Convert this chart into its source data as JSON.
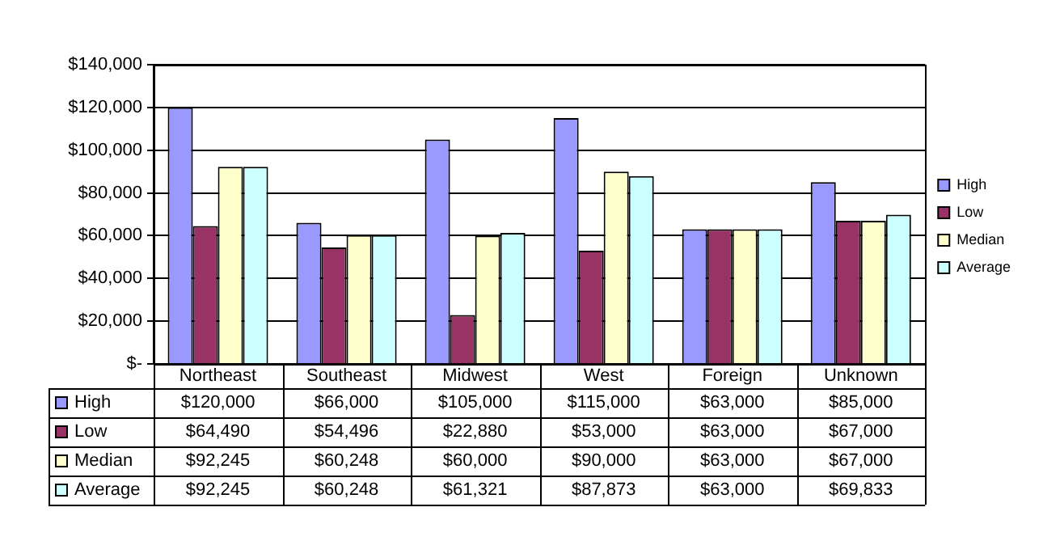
{
  "chart_data": {
    "type": "bar",
    "categories": [
      "Northeast",
      "Southeast",
      "Midwest",
      "West",
      "Foreign",
      "Unknown"
    ],
    "series": [
      {
        "name": "High",
        "color": "#9999ff",
        "values": [
          120000,
          66000,
          105000,
          115000,
          63000,
          85000
        ],
        "value_labels": [
          "$120,000",
          "$66,000",
          "$105,000",
          "$115,000",
          "$63,000",
          "$85,000"
        ]
      },
      {
        "name": "Low",
        "color": "#993366",
        "values": [
          64490,
          54496,
          22880,
          53000,
          63000,
          67000
        ],
        "value_labels": [
          "$64,490",
          "$54,496",
          "$22,880",
          "$53,000",
          "$63,000",
          "$67,000"
        ]
      },
      {
        "name": "Median",
        "color": "#ffffcc",
        "values": [
          92245,
          60248,
          60000,
          90000,
          63000,
          67000
        ],
        "value_labels": [
          "$92,245",
          "$60,248",
          "$60,000",
          "$90,000",
          "$63,000",
          "$67,000"
        ]
      },
      {
        "name": "Average",
        "color": "#ccffff",
        "values": [
          92245,
          60248,
          61321,
          87873,
          63000,
          69833
        ],
        "value_labels": [
          "$92,245",
          "$60,248",
          "$61,321",
          "$87,873",
          "$63,000",
          "$69,833"
        ]
      }
    ],
    "ylim": [
      0,
      140000
    ],
    "yticks": [
      {
        "value": 0,
        "label": "$-"
      },
      {
        "value": 20000,
        "label": "$20,000"
      },
      {
        "value": 40000,
        "label": "$40,000"
      },
      {
        "value": 60000,
        "label": "$60,000"
      },
      {
        "value": 80000,
        "label": "$80,000"
      },
      {
        "value": 100000,
        "label": "$100,000"
      },
      {
        "value": 120000,
        "label": "$120,000"
      },
      {
        "value": 140000,
        "label": "$140,000"
      }
    ],
    "grid": "y",
    "legend": "right"
  }
}
